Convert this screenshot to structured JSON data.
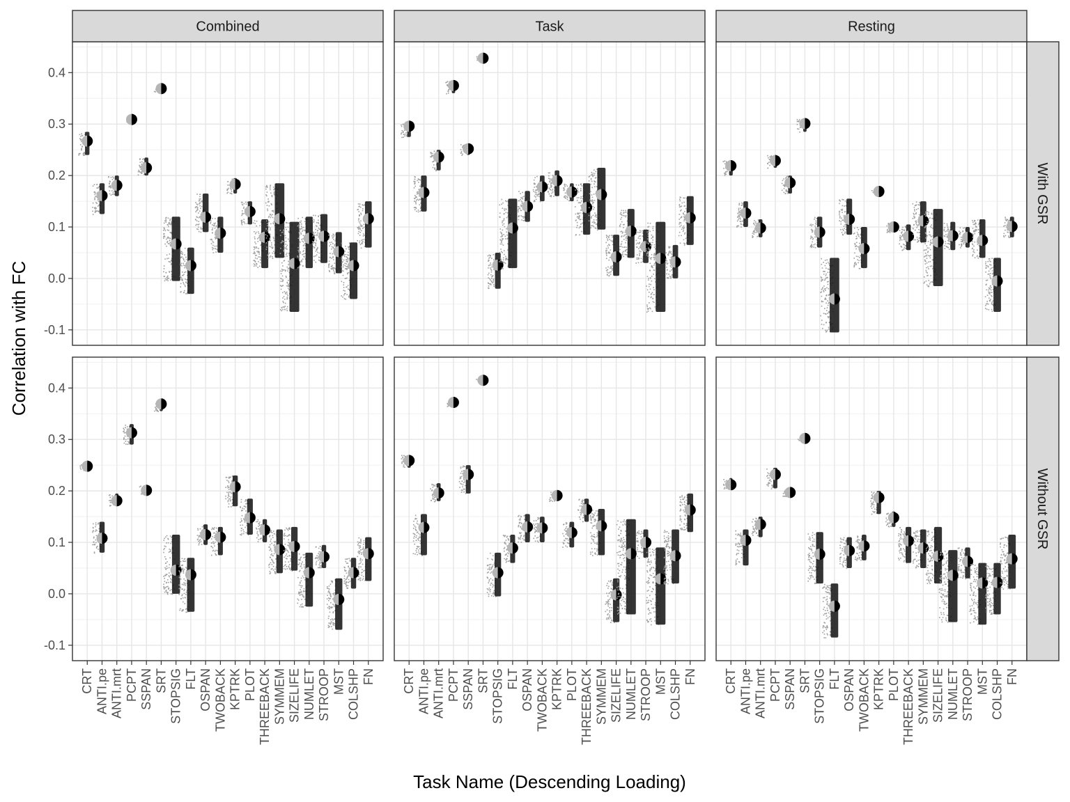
{
  "chart_data": {
    "type": "scatter",
    "xlabel": "Task Name (Descending Loading)",
    "ylabel": "Correlation with FC",
    "ylim": [
      -0.13,
      0.46
    ],
    "yticks": [
      -0.1,
      0.0,
      0.1,
      0.2,
      0.3,
      0.4
    ],
    "ytick_labels": [
      "-0.1",
      "0.0",
      "0.1",
      "0.2",
      "0.3",
      "0.4"
    ],
    "grid": true,
    "columns": [
      "Combined",
      "Task",
      "Resting"
    ],
    "rows": [
      "With GSR",
      "Without GSR"
    ],
    "categories": [
      "CRT",
      "ANTI.pe",
      "ANTI.mrt",
      "PCPT",
      "SSPAN",
      "SRT",
      "STOPSIG",
      "FLT",
      "OSPAN",
      "TWOBACK",
      "KPTRK",
      "PLOT",
      "THREEBACK",
      "SYMMEM",
      "SIZELIFE",
      "NUMLET",
      "STROOP",
      "MST",
      "COLSHP",
      "FN"
    ],
    "panels": [
      {
        "column": "Combined",
        "row": "With GSR",
        "categories": [
          "CRT",
          "ANTI.pe",
          "ANTI.mrt",
          "PCPT",
          "SSPAN",
          "SRT",
          "STOPSIG",
          "FLT",
          "OSPAN",
          "TWOBACK",
          "KPTRK",
          "PLOT",
          "THREEBACK",
          "SYMMEM",
          "SIZELIFE",
          "NUMLET",
          "STROOP",
          "MST",
          "COLSHP",
          "FN"
        ],
        "values": [
          0.267,
          0.161,
          0.181,
          0.309,
          0.215,
          0.369,
          0.067,
          0.025,
          0.119,
          0.088,
          0.183,
          0.13,
          0.08,
          0.116,
          0.029,
          0.078,
          0.082,
          0.052,
          0.025,
          0.116
        ],
        "low": [
          0.24,
          0.125,
          0.16,
          0.305,
          0.2,
          0.363,
          -0.005,
          -0.03,
          0.09,
          0.05,
          0.165,
          0.105,
          0.02,
          0.04,
          -0.065,
          0.02,
          0.03,
          0.01,
          -0.04,
          0.06
        ],
        "high": [
          0.285,
          0.185,
          0.2,
          0.313,
          0.235,
          0.374,
          0.12,
          0.06,
          0.165,
          0.12,
          0.195,
          0.15,
          0.115,
          0.185,
          0.11,
          0.12,
          0.125,
          0.09,
          0.07,
          0.15
        ]
      },
      {
        "column": "Task",
        "row": "With GSR",
        "categories": [
          "CRT",
          "ANTI.pe",
          "ANTI.mrt",
          "PCPT",
          "SSPAN",
          "SRT",
          "STOPSIG",
          "FLT",
          "OSPAN",
          "TWOBACK",
          "KPTRK",
          "PLOT",
          "THREEBACK",
          "SYMMEM",
          "SIZELIFE",
          "NUMLET",
          "STROOP",
          "MST",
          "COLSHP",
          "FN"
        ],
        "values": [
          0.296,
          0.167,
          0.236,
          0.375,
          0.252,
          0.428,
          0.026,
          0.098,
          0.14,
          0.178,
          0.19,
          0.168,
          0.138,
          0.163,
          0.042,
          0.092,
          0.062,
          0.039,
          0.032,
          0.118
        ],
        "low": [
          0.275,
          0.13,
          0.21,
          0.36,
          0.24,
          0.425,
          -0.02,
          0.02,
          0.11,
          0.15,
          0.16,
          0.15,
          0.085,
          0.095,
          0.005,
          0.04,
          0.03,
          -0.065,
          0.0,
          0.065
        ],
        "high": [
          0.305,
          0.2,
          0.25,
          0.385,
          0.262,
          0.432,
          0.05,
          0.155,
          0.17,
          0.2,
          0.21,
          0.185,
          0.185,
          0.215,
          0.085,
          0.135,
          0.095,
          0.11,
          0.065,
          0.16
        ]
      },
      {
        "column": "Resting",
        "row": "With GSR",
        "categories": [
          "CRT",
          "ANTI.pe",
          "ANTI.mrt",
          "PCPT",
          "SSPAN",
          "SRT",
          "STOPSIG",
          "FLT",
          "OSPAN",
          "TWOBACK",
          "KPTRK",
          "PLOT",
          "THREEBACK",
          "SYMMEM",
          "SIZELIFE",
          "NUMLET",
          "STROOP",
          "MST",
          "COLSHP",
          "FN"
        ],
        "values": [
          0.219,
          0.127,
          0.098,
          0.229,
          0.186,
          0.301,
          0.09,
          -0.04,
          0.115,
          0.058,
          0.169,
          0.1,
          0.082,
          0.112,
          0.071,
          0.083,
          0.08,
          0.074,
          -0.005,
          0.101
        ],
        "low": [
          0.2,
          0.1,
          0.08,
          0.215,
          0.165,
          0.285,
          0.06,
          -0.105,
          0.085,
          0.02,
          0.165,
          0.09,
          0.055,
          0.07,
          -0.015,
          0.055,
          0.06,
          0.04,
          -0.065,
          0.08
        ],
        "high": [
          0.23,
          0.15,
          0.115,
          0.24,
          0.2,
          0.31,
          0.12,
          0.04,
          0.155,
          0.1,
          0.173,
          0.11,
          0.105,
          0.15,
          0.135,
          0.11,
          0.1,
          0.115,
          0.04,
          0.12
        ]
      },
      {
        "column": "Combined",
        "row": "Without GSR",
        "categories": [
          "CRT",
          "ANTI.pe",
          "ANTI.mrt",
          "PCPT",
          "SSPAN",
          "SRT",
          "STOPSIG",
          "FLT",
          "OSPAN",
          "TWOBACK",
          "KPTRK",
          "PLOT",
          "THREEBACK",
          "SYMMEM",
          "SIZELIFE",
          "NUMLET",
          "STROOP",
          "MST",
          "COLSHP",
          "FN"
        ],
        "values": [
          0.248,
          0.108,
          0.181,
          0.313,
          0.201,
          0.369,
          0.046,
          0.037,
          0.115,
          0.11,
          0.208,
          0.148,
          0.124,
          0.086,
          0.092,
          0.041,
          0.072,
          -0.011,
          0.041,
          0.078
        ],
        "low": [
          0.24,
          0.08,
          0.17,
          0.29,
          0.195,
          0.355,
          0.0,
          -0.035,
          0.095,
          0.075,
          0.17,
          0.115,
          0.1,
          0.04,
          0.045,
          -0.025,
          0.05,
          -0.07,
          0.01,
          0.025
        ],
        "high": [
          0.255,
          0.14,
          0.195,
          0.33,
          0.212,
          0.375,
          0.115,
          0.07,
          0.135,
          0.13,
          0.23,
          0.185,
          0.145,
          0.125,
          0.13,
          0.08,
          0.095,
          0.03,
          0.07,
          0.11
        ]
      },
      {
        "column": "Task",
        "row": "Without GSR",
        "categories": [
          "CRT",
          "ANTI.pe",
          "ANTI.mrt",
          "PCPT",
          "SSPAN",
          "SRT",
          "STOPSIG",
          "FLT",
          "OSPAN",
          "TWOBACK",
          "KPTRK",
          "PLOT",
          "THREEBACK",
          "SYMMEM",
          "SIZELIFE",
          "NUMLET",
          "STROOP",
          "MST",
          "COLSHP",
          "FN"
        ],
        "values": [
          0.259,
          0.129,
          0.196,
          0.372,
          0.232,
          0.415,
          0.041,
          0.089,
          0.13,
          0.128,
          0.191,
          0.119,
          0.164,
          0.132,
          -0.002,
          0.078,
          0.1,
          0.029,
          0.074,
          0.163
        ],
        "low": [
          0.245,
          0.075,
          0.18,
          0.365,
          0.195,
          0.412,
          -0.005,
          0.06,
          0.1,
          0.1,
          0.18,
          0.09,
          0.14,
          0.075,
          -0.055,
          -0.04,
          0.07,
          -0.06,
          0.02,
          0.12
        ],
        "high": [
          0.27,
          0.155,
          0.215,
          0.378,
          0.25,
          0.418,
          0.08,
          0.115,
          0.155,
          0.15,
          0.2,
          0.14,
          0.185,
          0.165,
          0.03,
          0.145,
          0.125,
          0.09,
          0.125,
          0.195
        ]
      },
      {
        "column": "Resting",
        "row": "Without GSR",
        "categories": [
          "CRT",
          "ANTI.pe",
          "ANTI.mrt",
          "PCPT",
          "SSPAN",
          "SRT",
          "STOPSIG",
          "FLT",
          "OSPAN",
          "TWOBACK",
          "KPTRK",
          "PLOT",
          "THREEBACK",
          "SYMMEM",
          "SIZELIFE",
          "NUMLET",
          "STROOP",
          "MST",
          "COLSHP",
          "FN"
        ],
        "values": [
          0.212,
          0.104,
          0.135,
          0.232,
          0.197,
          0.302,
          0.077,
          -0.024,
          0.084,
          0.093,
          0.187,
          0.148,
          0.103,
          0.089,
          0.073,
          0.036,
          0.063,
          0.021,
          0.022,
          0.068
        ],
        "low": [
          0.205,
          0.055,
          0.11,
          0.205,
          0.19,
          0.298,
          0.02,
          -0.085,
          0.05,
          0.065,
          0.155,
          0.13,
          0.06,
          0.05,
          0.02,
          -0.055,
          0.03,
          -0.06,
          -0.04,
          0.01
        ],
        "high": [
          0.225,
          0.125,
          0.15,
          0.245,
          0.205,
          0.306,
          0.12,
          0.02,
          0.11,
          0.115,
          0.2,
          0.16,
          0.13,
          0.125,
          0.13,
          0.085,
          0.09,
          0.06,
          0.06,
          0.115
        ]
      }
    ]
  }
}
